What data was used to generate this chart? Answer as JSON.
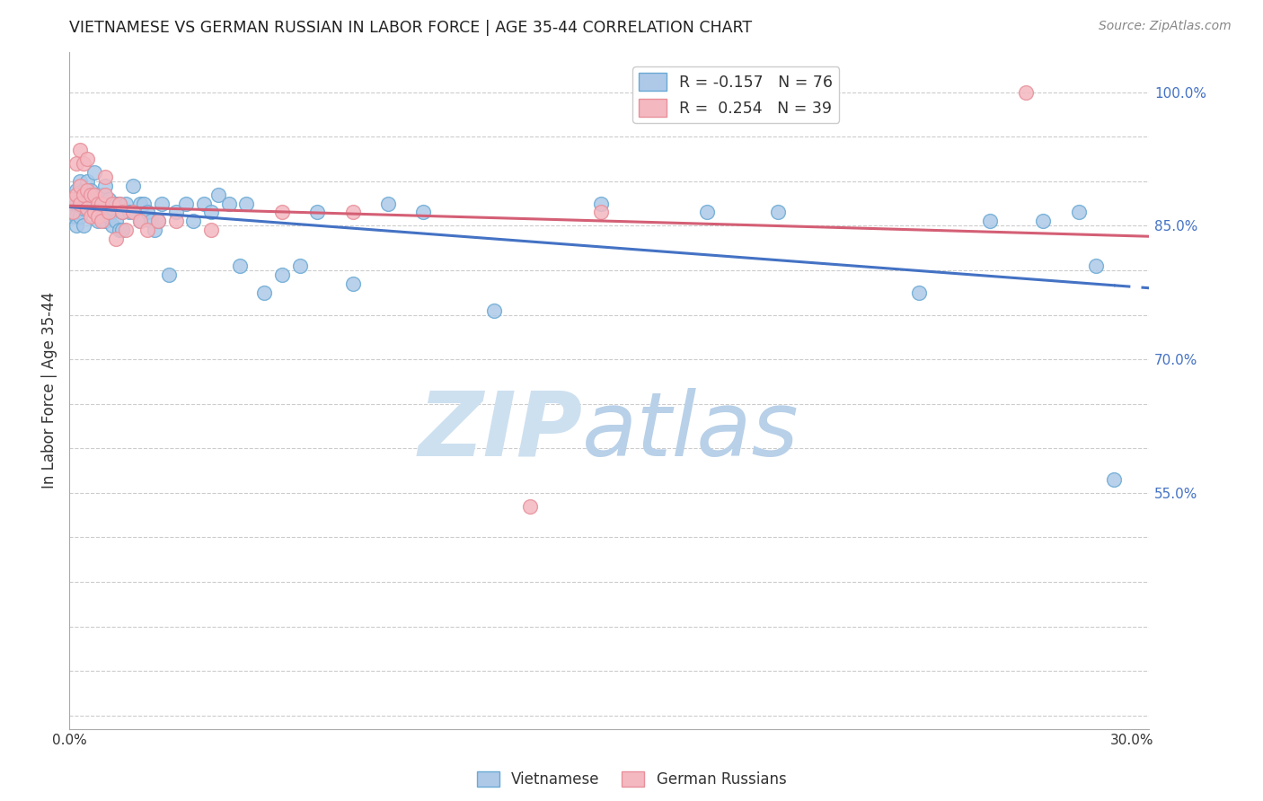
{
  "title": "VIETNAMESE VS GERMAN RUSSIAN IN LABOR FORCE | AGE 35-44 CORRELATION CHART",
  "source": "Source: ZipAtlas.com",
  "ylabel": "In Labor Force | Age 35-44",
  "xlim_min": 0.0,
  "xlim_max": 0.305,
  "ylim_min": 0.285,
  "ylim_max": 1.045,
  "ytick_positions": [
    0.3,
    0.35,
    0.4,
    0.45,
    0.5,
    0.55,
    0.6,
    0.65,
    0.7,
    0.75,
    0.8,
    0.85,
    0.9,
    0.95,
    1.0
  ],
  "ytick_labels": [
    "",
    "",
    "",
    "",
    "",
    "55.0%",
    "",
    "",
    "70.0%",
    "",
    "",
    "85.0%",
    "",
    "",
    "100.0%"
  ],
  "xtick_positions": [
    0.0,
    0.05,
    0.1,
    0.15,
    0.2,
    0.25,
    0.3
  ],
  "xtick_labels": [
    "0.0%",
    "",
    "",
    "",
    "",
    "",
    "30.0%"
  ],
  "legend_blue_label": "R = -0.157   N = 76",
  "legend_pink_label": "R =  0.254   N = 39",
  "blue_color": "#aec9e8",
  "pink_color": "#f4b8c1",
  "blue_edge_color": "#6aaad4",
  "pink_edge_color": "#e8909a",
  "blue_line_color": "#4472c4",
  "pink_line_color": "#d45f75",
  "ytick_color": "#4472c4",
  "watermark_zip_color": "#cde0f0",
  "watermark_atlas_color": "#b8d0e8",
  "blue_x": [
    0.001,
    0.001,
    0.001,
    0.002,
    0.002,
    0.002,
    0.002,
    0.003,
    0.003,
    0.003,
    0.004,
    0.004,
    0.004,
    0.005,
    0.005,
    0.005,
    0.006,
    0.006,
    0.007,
    0.007,
    0.008,
    0.008,
    0.009,
    0.009,
    0.01,
    0.01,
    0.01,
    0.011,
    0.011,
    0.012,
    0.012,
    0.013,
    0.013,
    0.014,
    0.014,
    0.015,
    0.015,
    0.016,
    0.017,
    0.018,
    0.018,
    0.02,
    0.02,
    0.021,
    0.022,
    0.023,
    0.024,
    0.025,
    0.026,
    0.028,
    0.03,
    0.033,
    0.035,
    0.038,
    0.04,
    0.042,
    0.045,
    0.048,
    0.05,
    0.055,
    0.06,
    0.065,
    0.07,
    0.08,
    0.09,
    0.1,
    0.12,
    0.15,
    0.18,
    0.2,
    0.24,
    0.26,
    0.275,
    0.285,
    0.29,
    0.295
  ],
  "blue_y": [
    0.88,
    0.87,
    0.86,
    0.89,
    0.875,
    0.86,
    0.85,
    0.9,
    0.88,
    0.86,
    0.89,
    0.87,
    0.85,
    0.9,
    0.885,
    0.87,
    0.89,
    0.875,
    0.91,
    0.885,
    0.875,
    0.855,
    0.885,
    0.865,
    0.895,
    0.875,
    0.855,
    0.88,
    0.86,
    0.87,
    0.85,
    0.875,
    0.855,
    0.875,
    0.845,
    0.865,
    0.845,
    0.875,
    0.865,
    0.895,
    0.865,
    0.875,
    0.855,
    0.875,
    0.865,
    0.855,
    0.845,
    0.855,
    0.875,
    0.795,
    0.865,
    0.875,
    0.855,
    0.875,
    0.865,
    0.885,
    0.875,
    0.805,
    0.875,
    0.775,
    0.795,
    0.805,
    0.865,
    0.785,
    0.875,
    0.865,
    0.755,
    0.875,
    0.865,
    0.865,
    0.775,
    0.855,
    0.855,
    0.865,
    0.805,
    0.565
  ],
  "pink_x": [
    0.001,
    0.001,
    0.002,
    0.002,
    0.003,
    0.003,
    0.003,
    0.004,
    0.004,
    0.005,
    0.005,
    0.005,
    0.006,
    0.006,
    0.007,
    0.007,
    0.008,
    0.008,
    0.009,
    0.009,
    0.01,
    0.01,
    0.011,
    0.012,
    0.013,
    0.014,
    0.015,
    0.016,
    0.018,
    0.02,
    0.022,
    0.025,
    0.03,
    0.04,
    0.06,
    0.08,
    0.13,
    0.15,
    0.27
  ],
  "pink_y": [
    0.88,
    0.865,
    0.92,
    0.885,
    0.935,
    0.895,
    0.875,
    0.92,
    0.885,
    0.925,
    0.89,
    0.87,
    0.885,
    0.86,
    0.885,
    0.865,
    0.875,
    0.86,
    0.875,
    0.855,
    0.905,
    0.885,
    0.865,
    0.875,
    0.835,
    0.875,
    0.865,
    0.845,
    0.865,
    0.855,
    0.845,
    0.855,
    0.855,
    0.845,
    0.865,
    0.865,
    0.535,
    0.865,
    1.0
  ]
}
